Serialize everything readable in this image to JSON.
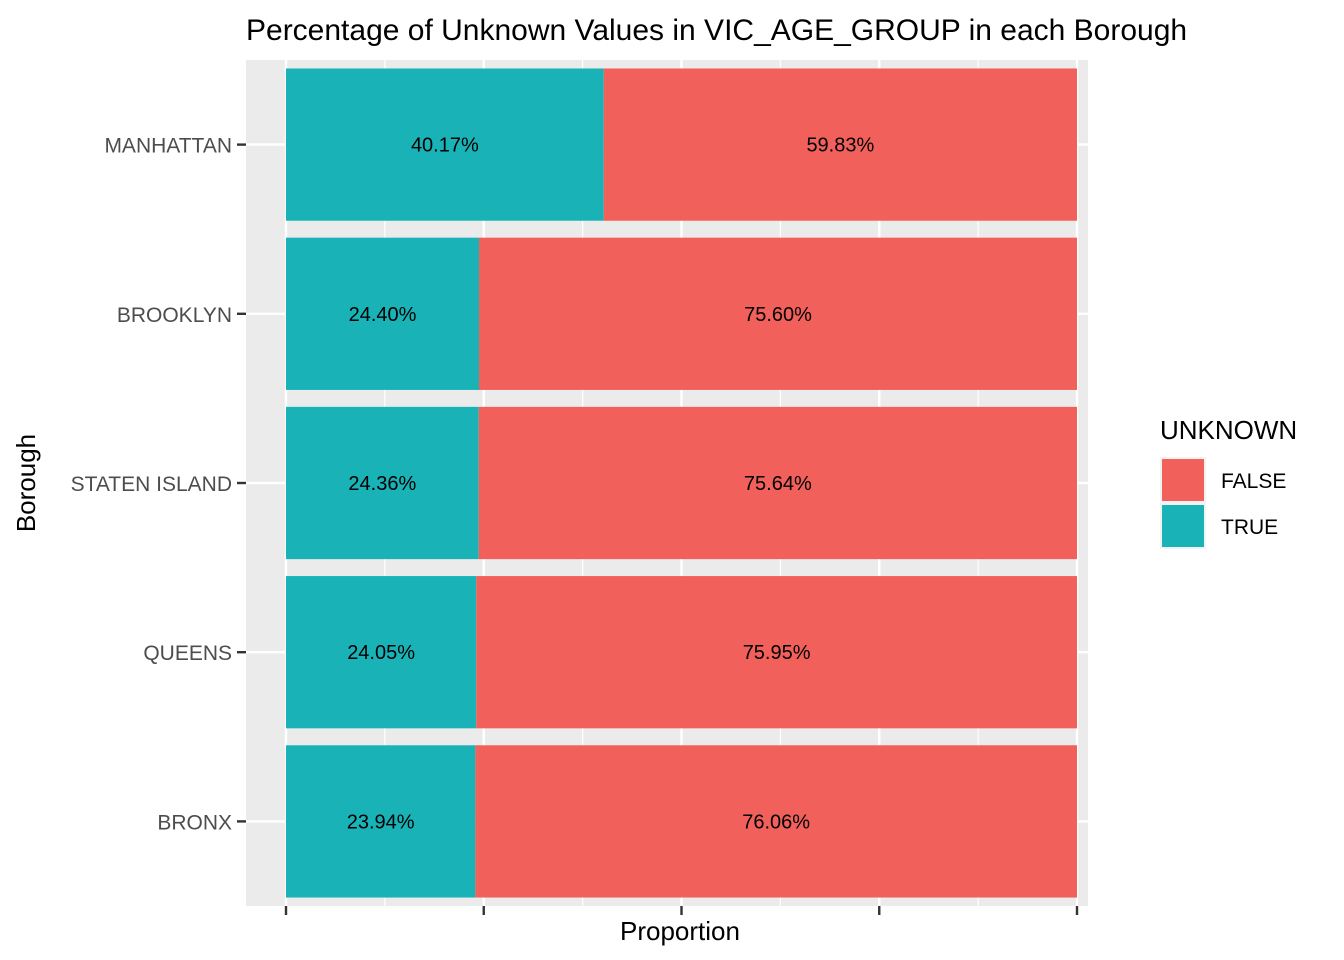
{
  "chart_data": {
    "type": "bar",
    "orientation": "horizontal",
    "stacked": true,
    "title": "Percentage of Unknown Values in VIC_AGE_GROUP in each Borough",
    "xlabel": "Proportion",
    "ylabel": "Borough",
    "xlim": [
      0,
      1
    ],
    "x_tick_labels_visible": false,
    "grid": true,
    "legend_position": "right",
    "categories": [
      "MANHATTAN",
      "BROOKLYN",
      "STATEN ISLAND",
      "QUEENS",
      "BRONX"
    ],
    "series": [
      {
        "name": "TRUE",
        "color": "#19B3B7",
        "values": [
          0.4017,
          0.244,
          0.2436,
          0.2405,
          0.2394
        ],
        "labels": [
          "40.17%",
          "24.40%",
          "24.36%",
          "24.05%",
          "23.94%"
        ]
      },
      {
        "name": "FALSE",
        "color": "#F2605C",
        "values": [
          0.5983,
          0.756,
          0.7564,
          0.7595,
          0.7606
        ],
        "labels": [
          "59.83%",
          "75.60%",
          "75.64%",
          "75.95%",
          "76.06%"
        ]
      }
    ],
    "legend": {
      "title": "UNKNOWN",
      "entries": [
        {
          "label": "FALSE",
          "color": "#F2605C"
        },
        {
          "label": "TRUE",
          "color": "#19B3B7"
        }
      ]
    }
  }
}
